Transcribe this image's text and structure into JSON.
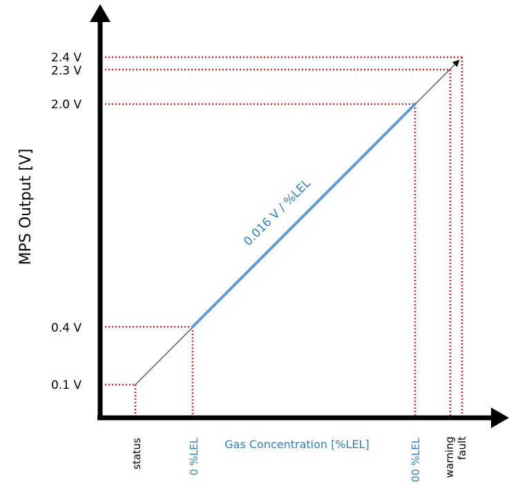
{
  "colors": {
    "axis": "#000000",
    "guide": "#e02020",
    "accent": "#2f7fc4",
    "line": "#5b9bd5",
    "thin_line": "#555555"
  },
  "y_axis": {
    "title": "MPS Output [V]",
    "ticks": [
      {
        "label": "2.4 V",
        "value": 2.4
      },
      {
        "label": "2.3 V",
        "value": 2.3
      },
      {
        "label": "2.0 V",
        "value": 2.0
      },
      {
        "label": "0.4 V",
        "value": 0.4
      },
      {
        "label": "0.1 V",
        "value": 0.1
      }
    ]
  },
  "x_axis": {
    "title": "Gas Concentration [%LEL]",
    "markers": [
      {
        "label": "status",
        "accent": false
      },
      {
        "label": "0 %LEL",
        "accent": true
      },
      {
        "label": "00 %LEL",
        "accent": true
      },
      {
        "label": "warning",
        "accent": false
      },
      {
        "label": "fault",
        "accent": false
      }
    ]
  },
  "slope_label": "0.016 V / %LEL"
}
